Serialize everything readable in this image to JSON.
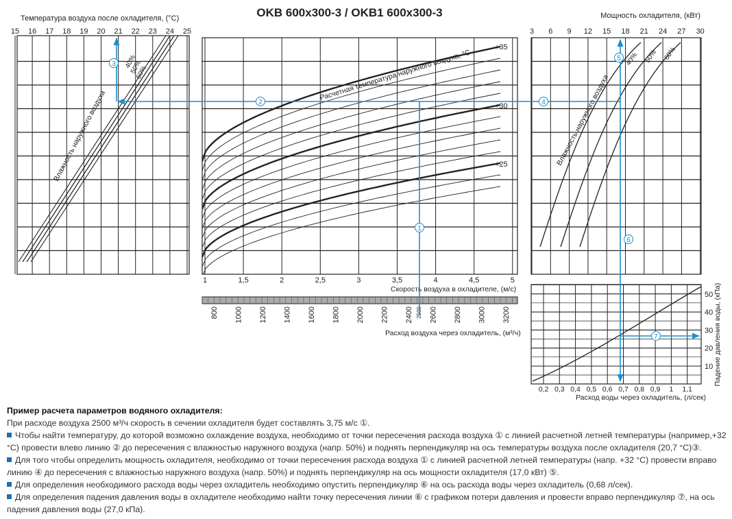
{
  "title": "OKB 600x300-3 / OKB1 600x300-3",
  "left_panel": {
    "axis_label": "Температура воздуха после охладителя, (°С)",
    "ticks": [
      "15",
      "16",
      "17",
      "18",
      "19",
      "20",
      "21",
      "22",
      "23",
      "24",
      "25"
    ],
    "humidity_label": "Влажность наружного воздуха",
    "curve_labels": [
      "40%",
      "50%",
      "60%"
    ]
  },
  "middle_panel": {
    "curve_title": "Расчетная температура наружного воздуха, °С",
    "temp_labels": [
      "+35",
      "+30",
      "+25"
    ],
    "speed_ticks": [
      "1",
      "1,5",
      "2",
      "2,5",
      "3",
      "3,5",
      "4",
      "4,5",
      "5"
    ],
    "speed_label": "Скорость воздуха в охладителе, (м/с)",
    "flow_ticks": [
      "800",
      "1000",
      "1200",
      "1400",
      "1600",
      "1800",
      "2000",
      "2200",
      "2400",
      "2600",
      "2800",
      "3000",
      "3200"
    ],
    "flow_marker": "2500",
    "flow_label": "Расход воздуха через охладитель, (м³/ч)"
  },
  "right_panel": {
    "axis_label": "Мощность охладителя, (кВт)",
    "ticks": [
      "3",
      "6",
      "9",
      "12",
      "15",
      "18",
      "21",
      "24",
      "27",
      "30"
    ],
    "humidity_label": "Влажность наружного воздуха",
    "curve_labels": [
      "40%",
      "50%",
      "60%"
    ]
  },
  "pressure_panel": {
    "flow_ticks": [
      "0,2",
      "0,3",
      "0,4",
      "0,5",
      "0,6",
      "0,7",
      "0,8",
      "0,9",
      "1",
      "1,1"
    ],
    "flow_label": "Расход воды через охладитель, (л/сек)",
    "pressure_ticks": [
      "10",
      "20",
      "30",
      "40",
      "50"
    ],
    "pressure_label": "Падение давления воды, (кПа)"
  },
  "markers": [
    "①",
    "②",
    "③",
    "④",
    "⑤",
    "⑥",
    "⑦"
  ],
  "notes": {
    "heading": "Пример расчета параметров водяного охладителя:",
    "intro": "При расходе воздуха 2500 м³/ч скорость в сечении охладителя будет составлять 3,75 м/с ①.",
    "items": [
      "Чтобы найти температуру, до которой возможно охлаждение воздуха, необходимо от точки пересечения расхода воздуха ① с линией расчетной летней температуры (например,+32 °С) провести влево линию ② до пересечения с влажностью наружного воздуха (напр. 50%) и поднять перпендикуляр на ось температуры воздуха после охладителя (20,7 °С)③.",
      "Для того чтобы определить мощность охладителя, необходимо от точки пересечения расхода воздуха ① с линией расчетной летней температуры (напр. +32 °С) провести вправо линию ④ до пересечения с влажностью наружного воздуха (напр. 50%) и поднять перпендикуляр на ось мощности охладителя (17,0 кВт) ⑤.",
      "Для определения необходимого расхода воды через охладитель необходимо опустить перпендикуляр ⑥ на ось расхода воды через охладитель (0,68 л/сек).",
      "Для определения падения давления воды в охладителе необходимо найти точку пересечения линии ⑥ с графиком потери давления и провести вправо перпендикуляр ⑦, на ось падения давления воды (27,0 кПа)."
    ]
  }
}
